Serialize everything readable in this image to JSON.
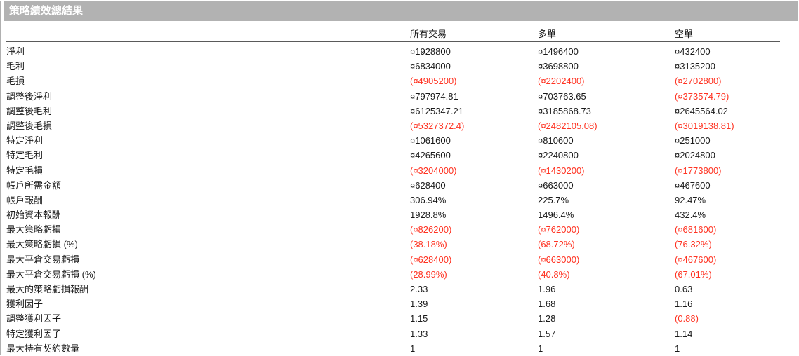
{
  "title": "策略績效總結果",
  "columns": [
    "所有交易",
    "多單",
    "空單"
  ],
  "rows": [
    {
      "label": "淨利",
      "values": [
        "¤1928800",
        "¤1496400",
        "¤432400"
      ]
    },
    {
      "label": "毛利",
      "values": [
        "¤6834000",
        "¤3698800",
        "¤3135200"
      ]
    },
    {
      "label": "毛損",
      "values": [
        "(¤4905200)",
        "(¤2202400)",
        "(¤2702800)"
      ]
    },
    {
      "label": "調整後淨利",
      "values": [
        "¤797974.81",
        "¤703763.65",
        "(¤373574.79)"
      ]
    },
    {
      "label": "調整後毛利",
      "values": [
        "¤6125347.21",
        "¤3185868.73",
        "¤2645564.02"
      ]
    },
    {
      "label": "調整後毛損",
      "values": [
        "(¤5327372.4)",
        "(¤2482105.08)",
        "(¤3019138.81)"
      ]
    },
    {
      "label": "特定淨利",
      "values": [
        "¤1061600",
        "¤810600",
        "¤251000"
      ]
    },
    {
      "label": "特定毛利",
      "values": [
        "¤4265600",
        "¤2240800",
        "¤2024800"
      ]
    },
    {
      "label": "特定毛損",
      "values": [
        "(¤3204000)",
        "(¤1430200)",
        "(¤1773800)"
      ]
    },
    {
      "label": "帳戶所需金額",
      "values": [
        "¤628400",
        "¤663000",
        "¤467600"
      ]
    },
    {
      "label": "帳戶報酬",
      "values": [
        "306.94%",
        "225.7%",
        "92.47%"
      ]
    },
    {
      "label": "初始資本報酬",
      "values": [
        "1928.8%",
        "1496.4%",
        "432.4%"
      ]
    },
    {
      "label": "最大策略虧損",
      "values": [
        "(¤826200)",
        "(¤762000)",
        "(¤681600)"
      ]
    },
    {
      "label": "最大策略虧損 (%)",
      "values": [
        "(38.18%)",
        "(68.72%)",
        "(76.32%)"
      ]
    },
    {
      "label": "最大平倉交易虧損",
      "values": [
        "(¤628400)",
        "(¤663000)",
        "(¤467600)"
      ]
    },
    {
      "label": "最大平倉交易虧損 (%)",
      "values": [
        "(28.99%)",
        "(40.8%)",
        "(67.01%)"
      ]
    },
    {
      "label": "最大的策略虧損報酬",
      "values": [
        "2.33",
        "1.96",
        "0.63"
      ]
    },
    {
      "label": "獲利因子",
      "values": [
        "1.39",
        "1.68",
        "1.16"
      ]
    },
    {
      "label": "調整獲利因子",
      "values": [
        "1.15",
        "1.28",
        "(0.88)"
      ]
    },
    {
      "label": "特定獲利因子",
      "values": [
        "1.33",
        "1.57",
        "1.14"
      ]
    },
    {
      "label": "最大持有契約數量",
      "values": [
        "1",
        "1",
        "1"
      ]
    }
  ],
  "colors": {
    "negative": "#ff3322",
    "text": "#1a1a1a",
    "title_bar_bg": "#b2b2b2",
    "title_text": "#ffffff",
    "column_header_text": "#8f8f8f",
    "divider": "#5a5a5a",
    "border": "#b0b0b0"
  }
}
